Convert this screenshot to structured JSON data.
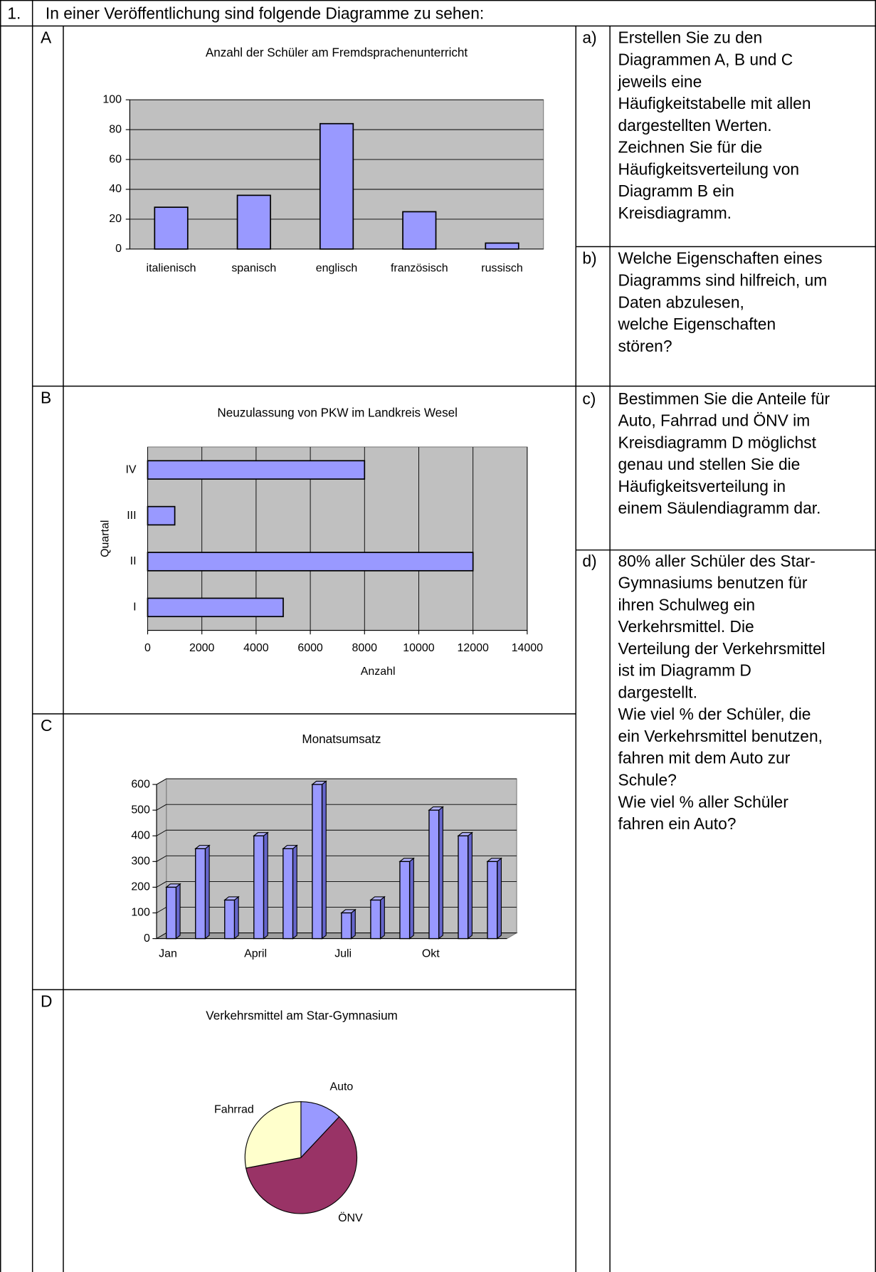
{
  "document": {
    "number": "1.",
    "intro": "In einer Veröffentlichung sind folgende Diagramme zu sehen:",
    "sections": [
      "A",
      "B",
      "C",
      "D"
    ],
    "tasks": [
      {
        "label": "a)",
        "lines": [
          "Erstellen Sie zu den",
          "Diagrammen A, B und C",
          "jeweils eine",
          "Häufigkeitstabelle mit allen",
          "dargestellten Werten.",
          "Zeichnen Sie für die",
          "Häufigkeitsverteilung von",
          "Diagramm B ein",
          "Kreisdiagramm."
        ]
      },
      {
        "label": "b)",
        "lines": [
          "Welche Eigenschaften eines",
          "Diagramms sind hilfreich, um",
          "Daten abzulesen,",
          "welche Eigenschaften",
          "stören?"
        ]
      },
      {
        "label": "c)",
        "lines": [
          "Bestimmen Sie die Anteile für",
          "Auto, Fahrrad und ÖNV im",
          "Kreisdiagramm D möglichst",
          "genau und stellen Sie die",
          "Häufigkeitsverteilung in",
          "einem Säulendiagramm dar."
        ]
      },
      {
        "label": "d)",
        "lines": [
          "80% aller Schüler des Star-",
          "Gymnasiums benutzen für",
          "ihren Schulweg ein",
          "Verkehrsmittel. Die",
          "Verteilung der Verkehrsmittel",
          "ist im Diagramm D",
          "dargestellt.",
          "Wie viel % der Schüler, die",
          "ein Verkehrsmittel benutzen,",
          "fahren mit dem Auto zur",
          "Schule?",
          "Wie viel % aller Schüler",
          "fahren ein Auto?"
        ]
      }
    ]
  },
  "chart_data": [
    {
      "type": "bar",
      "title": "Anzahl der Schüler am Fremdsprachenunterricht",
      "categories": [
        "italienisch",
        "spanisch",
        "englisch",
        "französisch",
        "russisch"
      ],
      "values": [
        28,
        36,
        84,
        25,
        4
      ],
      "color": "#9999ff",
      "ylim": [
        0,
        100
      ],
      "yticks": [
        0,
        20,
        40,
        60,
        80,
        100
      ],
      "grid": true
    },
    {
      "type": "barh",
      "title": "Neuzulassung von PKW im Landkreis Wesel",
      "categories": [
        "I",
        "II",
        "III",
        "IV"
      ],
      "values": [
        5000,
        12000,
        1000,
        8000
      ],
      "color": "#9999ff",
      "xlabel": "Anzahl",
      "ylabel": "Quartal",
      "xlim": [
        0,
        14000
      ],
      "xticks": [
        0,
        2000,
        4000,
        6000,
        8000,
        10000,
        12000,
        14000
      ],
      "grid": true
    },
    {
      "type": "bar3d",
      "title": "Monatsumsatz",
      "categories": [
        "Jan",
        null,
        null,
        "April",
        null,
        null,
        "Juli",
        null,
        null,
        "Okt",
        null,
        null
      ],
      "values": [
        200,
        350,
        150,
        400,
        350,
        600,
        100,
        150,
        300,
        500,
        400,
        300
      ],
      "color": "#9999ff",
      "ylim": [
        0,
        600
      ],
      "yticks": [
        0,
        100,
        200,
        300,
        400,
        500,
        600
      ],
      "grid": true
    },
    {
      "type": "pie",
      "title": "Verkehrsmittel am Star-Gymnasium",
      "categories": [
        "Auto",
        "ÖNV",
        "Fahrrad"
      ],
      "values": [
        12,
        60,
        28
      ],
      "colors": [
        "#9999ff",
        "#993366",
        "#ffffcc"
      ]
    }
  ]
}
